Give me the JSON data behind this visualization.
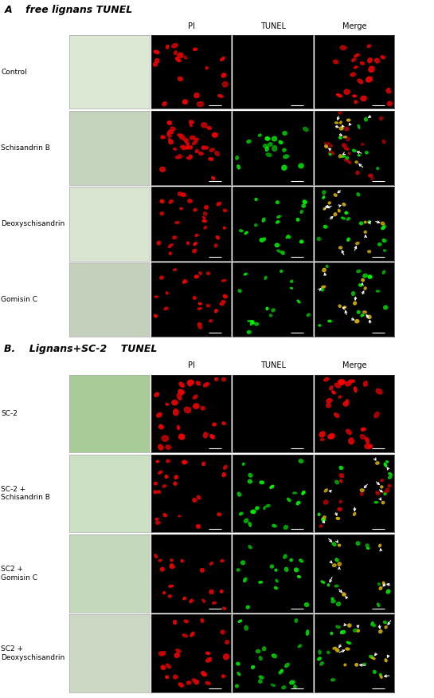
{
  "fig_width": 5.45,
  "fig_height": 8.75,
  "dpi": 100,
  "background_color": "#ffffff",
  "section_A_title": "A    free lignans TUNEL",
  "section_B_title": "B.    Lignans+SC-2    TUNEL",
  "col_headers": [
    "PI",
    "TUNEL",
    "Merge"
  ],
  "rows_A": [
    "Control",
    "Schisandrin B",
    "Deoxyschisandrin",
    "Gomisin C"
  ],
  "rows_B": [
    "SC-2",
    "SC-2 +\nSchisandrin B",
    "SC2 +\nGomisin C",
    "SC2 +\nDeoxyschisandrin"
  ],
  "phase_color_A": [
    "#dce8d4",
    "#c4d4bc",
    "#d8e4d0",
    "#c4d0bc"
  ],
  "phase_color_B": [
    "#a8cc98",
    "#cce0c4",
    "#c4d8bc",
    "#ccd8c4"
  ],
  "text_color": "#000000",
  "title_fontsize": 9,
  "label_fontsize": 6.5,
  "col_header_fontsize": 7
}
